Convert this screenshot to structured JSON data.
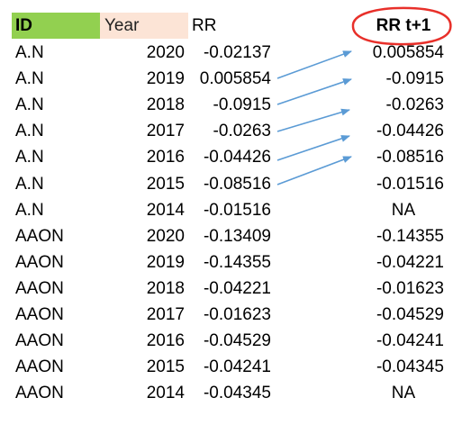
{
  "headers": {
    "id": "ID",
    "year": "Year",
    "rr": "RR",
    "rr_next": "RR t+1"
  },
  "rows": [
    {
      "id": "A.N",
      "year": "2020",
      "rr": "-0.02137",
      "rr_next": "0.005854"
    },
    {
      "id": "A.N",
      "year": "2019",
      "rr": "0.005854",
      "rr_next": "-0.0915"
    },
    {
      "id": "A.N",
      "year": "2018",
      "rr": "-0.0915",
      "rr_next": "-0.0263"
    },
    {
      "id": "A.N",
      "year": "2017",
      "rr": "-0.0263",
      "rr_next": "-0.04426"
    },
    {
      "id": "A.N",
      "year": "2016",
      "rr": "-0.04426",
      "rr_next": "-0.08516"
    },
    {
      "id": "A.N",
      "year": "2015",
      "rr": "-0.08516",
      "rr_next": "-0.01516"
    },
    {
      "id": "A.N",
      "year": "2014",
      "rr": "-0.01516",
      "rr_next": "NA"
    },
    {
      "id": "AAON",
      "year": "2020",
      "rr": "-0.13409",
      "rr_next": "-0.14355"
    },
    {
      "id": "AAON",
      "year": "2019",
      "rr": "-0.14355",
      "rr_next": "-0.04221"
    },
    {
      "id": "AAON",
      "year": "2018",
      "rr": "-0.04221",
      "rr_next": "-0.01623"
    },
    {
      "id": "AAON",
      "year": "2017",
      "rr": "-0.01623",
      "rr_next": "-0.04529"
    },
    {
      "id": "AAON",
      "year": "2016",
      "rr": "-0.04529",
      "rr_next": "-0.04241"
    },
    {
      "id": "AAON",
      "year": "2015",
      "rr": "-0.04241",
      "rr_next": "-0.04345"
    },
    {
      "id": "AAON",
      "year": "2014",
      "rr": "-0.04345",
      "rr_next": "NA"
    }
  ],
  "annotations": {
    "circle_color": "#e8302a",
    "arrow_color": "#5b9bd5"
  }
}
